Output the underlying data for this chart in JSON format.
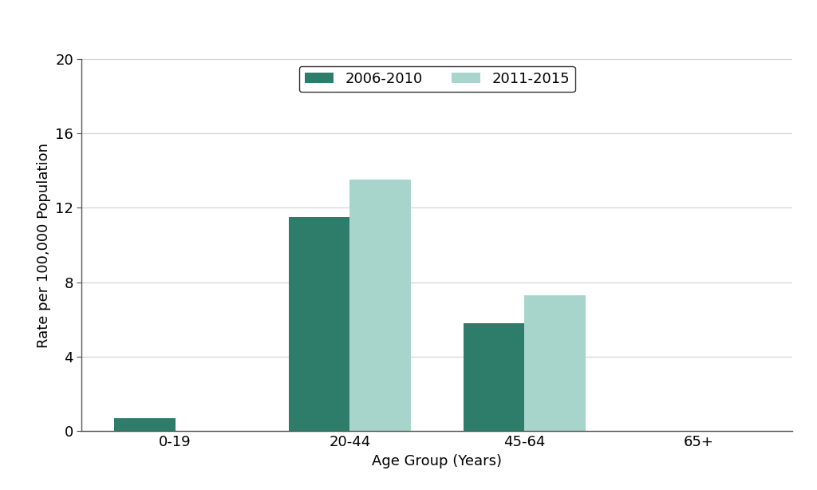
{
  "categories": [
    "0-19",
    "20-44",
    "45-64",
    "65+"
  ],
  "series": [
    {
      "label": "2006-2010",
      "values": [
        0.7,
        11.5,
        5.8,
        0.0
      ],
      "color": "#2E7D6B"
    },
    {
      "label": "2011-2015",
      "values": [
        0.0,
        13.5,
        7.3,
        0.0
      ],
      "color": "#A8D5CB"
    }
  ],
  "xlabel": "Age Group (Years)",
  "ylabel": "Rate per 100,000 Population",
  "ylim": [
    0,
    20
  ],
  "yticks": [
    0,
    4,
    8,
    12,
    16,
    20
  ],
  "bar_width": 0.35,
  "background_color": "#ffffff",
  "legend_ncol": 2,
  "grid_color": "#d0d0d0",
  "axis_label_fontsize": 13,
  "tick_fontsize": 13,
  "legend_fontsize": 13,
  "spine_color": "#555555"
}
